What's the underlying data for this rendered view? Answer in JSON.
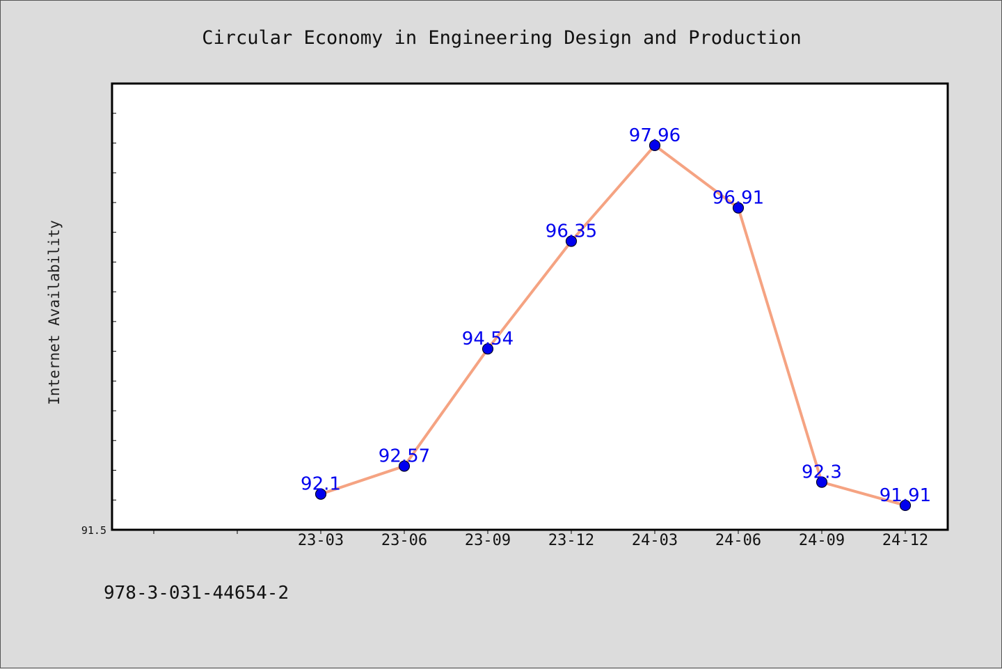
{
  "chart_data": {
    "type": "line",
    "title": "Circular Economy in Engineering Design and Production",
    "ylabel": "Internet Availability",
    "xlabel": "",
    "categories": [
      "23-03",
      "23-06",
      "23-09",
      "23-12",
      "24-03",
      "24-06",
      "24-09",
      "24-12"
    ],
    "values": [
      92.1,
      92.57,
      94.54,
      96.35,
      97.96,
      96.91,
      92.3,
      91.91
    ],
    "data_labels": [
      "92.1",
      "92.57",
      "94.54",
      "96.35",
      "97.96",
      "96.91",
      "92.3",
      "91.91"
    ],
    "ylim": [
      91.5,
      99.0
    ],
    "y_tick_label": "91.5",
    "grid": false,
    "legend": "none",
    "colors": {
      "line": "#f5a382",
      "marker": "#0000ee",
      "label": "#0000ee",
      "background": "#dcdcdc",
      "plot_area": "#ffffff"
    }
  },
  "footnote": "978-3-031-44654-2"
}
